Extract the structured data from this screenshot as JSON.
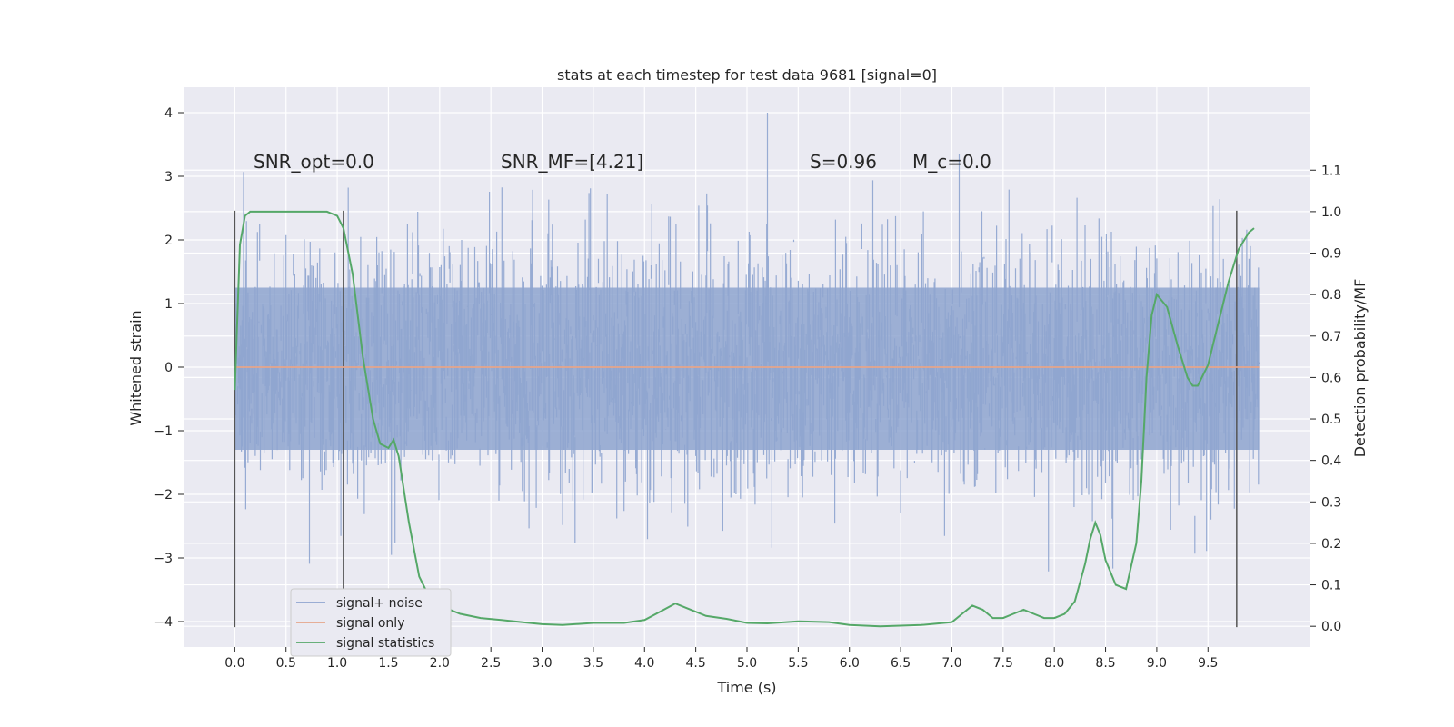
{
  "chart_data": {
    "type": "line",
    "title": "stats at each timestep for test data 9681 [signal=0]",
    "xlabel": "Time (s)",
    "ylabel": "Whitened strain",
    "y2label": "Detection probability/MF",
    "xlim": [
      -0.5,
      10.5
    ],
    "ylim": [
      -4.4,
      4.4
    ],
    "y2lim": [
      -0.05,
      1.3
    ],
    "x_ticks": [
      "0.0",
      "0.5",
      "1.0",
      "1.5",
      "2.0",
      "2.5",
      "3.0",
      "3.5",
      "4.0",
      "4.5",
      "5.0",
      "5.5",
      "6.0",
      "6.5",
      "7.0",
      "7.5",
      "8.0",
      "8.5",
      "9.0",
      "9.5"
    ],
    "y_ticks": [
      "4",
      "3",
      "2",
      "1",
      "0",
      "−1",
      "−2",
      "−3",
      "−4"
    ],
    "y2_ticks": [
      "1.1",
      "1.0",
      "0.9",
      "0.8",
      "0.7",
      "0.6",
      "0.5",
      "0.4",
      "0.3",
      "0.2",
      "0.1",
      "0.0"
    ],
    "grid": true,
    "legend_position": "lower-left",
    "annotations": [
      {
        "text": "SNR_opt=0.0"
      },
      {
        "text": "SNR_MF=[4.21]"
      },
      {
        "text": "S=0.96"
      },
      {
        "text": "M_c=0.0"
      }
    ],
    "vertical_markers_x": [
      0.0,
      1.06,
      9.78
    ],
    "series": [
      {
        "name": "signal+ noise",
        "color": "#8ea4cf",
        "axis": "left",
        "sample_rate": 4096,
        "x_range": [
          0.0,
          10.0
        ],
        "amplitude_envelope": [
          -4.1,
          4.0
        ]
      },
      {
        "name": "signal only",
        "color": "#e6a58a",
        "axis": "left",
        "x": [
          0.0,
          10.0
        ],
        "values": [
          0.0,
          0.0
        ]
      },
      {
        "name": "signal statistics",
        "color": "#55a868",
        "axis": "right",
        "x": [
          0.0,
          0.05,
          0.1,
          0.15,
          0.2,
          0.3,
          0.5,
          0.7,
          0.9,
          1.0,
          1.06,
          1.15,
          1.25,
          1.35,
          1.42,
          1.5,
          1.55,
          1.6,
          1.7,
          1.8,
          1.9,
          2.0,
          2.2,
          2.4,
          2.6,
          2.8,
          3.0,
          3.2,
          3.5,
          3.8,
          4.0,
          4.15,
          4.3,
          4.45,
          4.6,
          4.8,
          5.0,
          5.2,
          5.5,
          5.8,
          6.0,
          6.3,
          6.7,
          7.0,
          7.1,
          7.2,
          7.3,
          7.4,
          7.5,
          7.6,
          7.7,
          7.8,
          7.9,
          8.0,
          8.1,
          8.2,
          8.3,
          8.35,
          8.4,
          8.45,
          8.5,
          8.6,
          8.7,
          8.8,
          8.85,
          8.9,
          8.95,
          9.0,
          9.1,
          9.2,
          9.3,
          9.35,
          9.4,
          9.5,
          9.6,
          9.7,
          9.8,
          9.9,
          9.95
        ],
        "values": [
          0.57,
          0.92,
          0.99,
          1.0,
          1.0,
          1.0,
          1.0,
          1.0,
          1.0,
          0.99,
          0.96,
          0.85,
          0.65,
          0.5,
          0.44,
          0.43,
          0.45,
          0.41,
          0.25,
          0.12,
          0.07,
          0.05,
          0.03,
          0.02,
          0.015,
          0.01,
          0.005,
          0.003,
          0.008,
          0.008,
          0.015,
          0.035,
          0.055,
          0.04,
          0.025,
          0.018,
          0.008,
          0.007,
          0.012,
          0.01,
          0.003,
          0.0,
          0.003,
          0.01,
          0.03,
          0.05,
          0.04,
          0.02,
          0.02,
          0.03,
          0.04,
          0.03,
          0.02,
          0.02,
          0.03,
          0.06,
          0.15,
          0.21,
          0.25,
          0.22,
          0.16,
          0.1,
          0.09,
          0.2,
          0.35,
          0.6,
          0.75,
          0.8,
          0.77,
          0.68,
          0.6,
          0.58,
          0.58,
          0.63,
          0.73,
          0.83,
          0.91,
          0.95,
          0.96
        ]
      }
    ]
  }
}
